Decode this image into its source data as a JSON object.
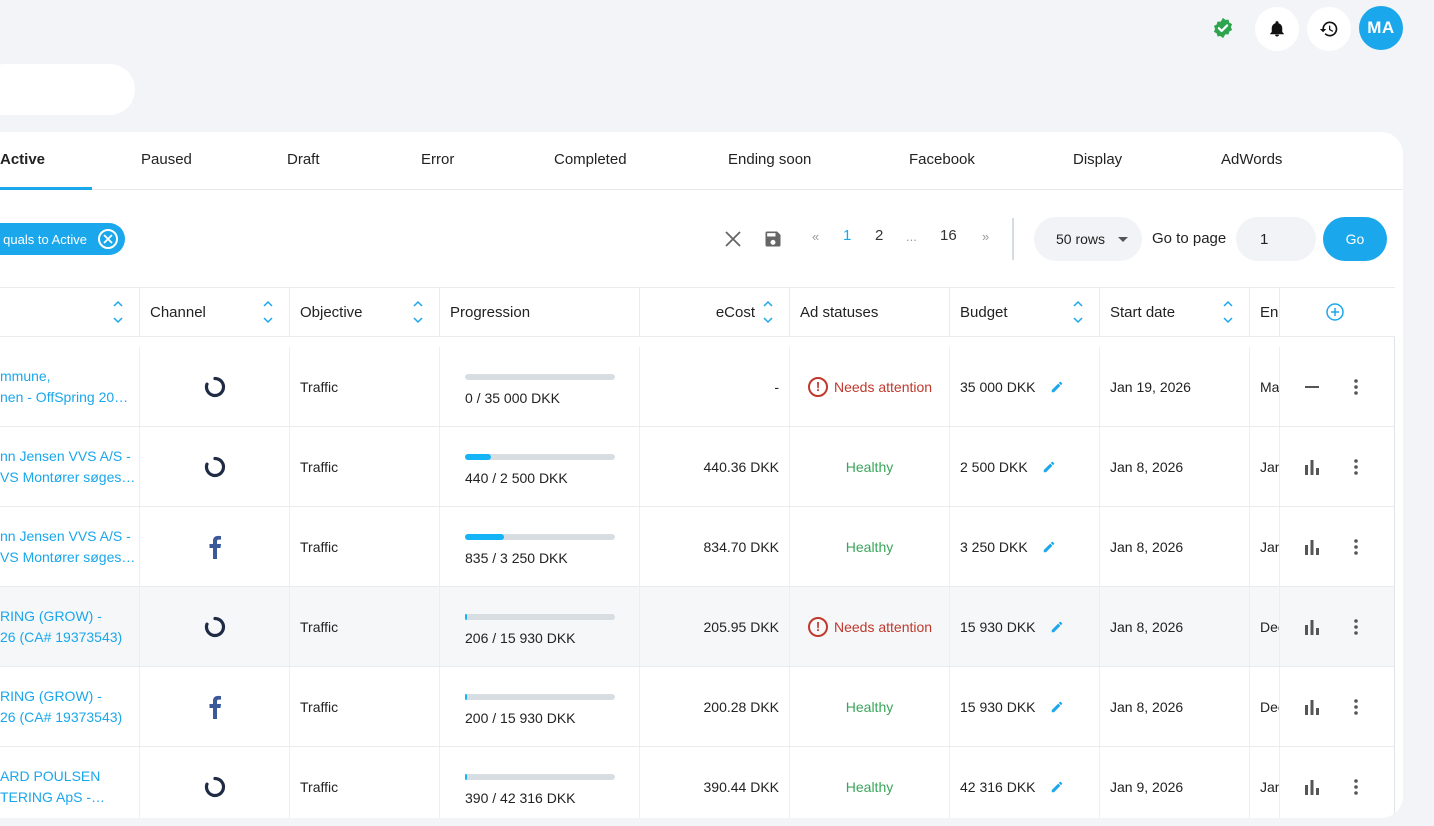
{
  "header": {
    "verified_icon": "verified-check-icon",
    "notifications_icon": "bell-icon",
    "history_icon": "history-icon",
    "avatar_initials": "MA"
  },
  "tabs": [
    {
      "label": "Active",
      "active": true
    },
    {
      "label": "Paused"
    },
    {
      "label": "Draft"
    },
    {
      "label": "Error"
    },
    {
      "label": "Completed"
    },
    {
      "label": "Ending soon"
    },
    {
      "label": "Facebook"
    },
    {
      "label": "Display"
    },
    {
      "label": "AdWords"
    }
  ],
  "toolbar": {
    "filter_chip": "quals to Active",
    "pagination": {
      "first": "«",
      "pages": [
        "1",
        "2",
        "...",
        "16"
      ],
      "last": "»",
      "current": "1"
    },
    "rows_select": "50 rows",
    "goto_label": "Go to page",
    "goto_value": "1",
    "go_button": "Go"
  },
  "columns": {
    "channel": "Channel",
    "objective": "Objective",
    "progression": "Progression",
    "ecost": "eCost",
    "ad_statuses": "Ad statuses",
    "budget": "Budget",
    "start_date": "Start date",
    "end_date": "End"
  },
  "rows": [
    {
      "name1": "mmune,",
      "name2": "nen - OffSpring 20…",
      "channel": "display",
      "objective": "Traffic",
      "progress": 0.0,
      "progression": "0 / 35 000 DKK",
      "ecost": "-",
      "status": "Needs attention",
      "budget": "35 000 DKK",
      "start": "Jan 19, 2026",
      "end": "Ma",
      "action": "minus"
    },
    {
      "name1": "nn Jensen VVS A/S -",
      "name2": "VS Montører søges…",
      "channel": "display",
      "objective": "Traffic",
      "progress": 0.176,
      "progression": "440 / 2 500 DKK",
      "ecost": "440.36 DKK",
      "status": "Healthy",
      "budget": "2 500 DKK",
      "start": "Jan 8, 2026",
      "end": "Jan",
      "action": "chart"
    },
    {
      "name1": "nn Jensen VVS A/S -",
      "name2": "VS Montører søges…",
      "channel": "facebook",
      "objective": "Traffic",
      "progress": 0.257,
      "progression": "835 / 3 250 DKK",
      "ecost": "834.70 DKK",
      "status": "Healthy",
      "budget": "3 250 DKK",
      "start": "Jan 8, 2026",
      "end": "Jan",
      "action": "chart"
    },
    {
      "name1": "RING (GROW) -",
      "name2": "26 (CA# 19373543)",
      "channel": "display",
      "objective": "Traffic",
      "progress": 0.013,
      "progression": "206 / 15 930 DKK",
      "ecost": "205.95 DKK",
      "status": "Needs attention",
      "budget": "15 930 DKK",
      "start": "Jan 8, 2026",
      "end": "Dec",
      "action": "chart"
    },
    {
      "name1": "RING (GROW) -",
      "name2": "26 (CA# 19373543)",
      "channel": "facebook",
      "objective": "Traffic",
      "progress": 0.013,
      "progression": "200 / 15 930 DKK",
      "ecost": "200.28 DKK",
      "status": "Healthy",
      "budget": "15 930 DKK",
      "start": "Jan 8, 2026",
      "end": "Dec",
      "action": "chart"
    },
    {
      "name1": "ARD POULSEN",
      "name2": "TERING ApS -…",
      "channel": "display",
      "objective": "Traffic",
      "progress": 0.009,
      "progression": "390 / 42 316 DKK",
      "ecost": "390.44 DKK",
      "status": "Healthy",
      "budget": "42 316 DKK",
      "start": "Jan 9, 2026",
      "end": "Jan",
      "action": "chart"
    }
  ],
  "colors": {
    "accent": "#1aa7ec",
    "healthy": "#3aa55b",
    "warning": "#c0392b",
    "verified": "#2ea44f"
  }
}
